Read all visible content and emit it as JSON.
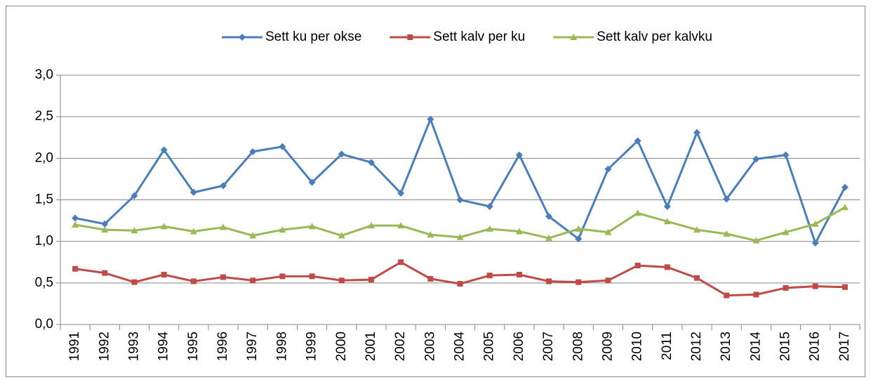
{
  "chart_data": {
    "type": "line",
    "categories": [
      "1991",
      "1992",
      "1993",
      "1994",
      "1995",
      "1996",
      "1997",
      "1998",
      "1999",
      "2000",
      "2001",
      "2002",
      "2003",
      "2004",
      "2005",
      "2006",
      "2007",
      "2008",
      "2009",
      "2010",
      "2011",
      "2012",
      "2013",
      "2014",
      "2015",
      "2016",
      "2017"
    ],
    "series": [
      {
        "name": "Sett ku per okse",
        "color": "#4a7ebb",
        "marker": "diamond",
        "values": [
          1.28,
          1.21,
          1.55,
          2.1,
          1.59,
          1.67,
          2.08,
          2.14,
          1.71,
          2.05,
          1.95,
          1.58,
          2.47,
          1.5,
          1.42,
          2.04,
          1.3,
          1.03,
          1.87,
          2.21,
          1.42,
          2.31,
          1.51,
          1.99,
          2.04,
          0.98,
          1.65
        ]
      },
      {
        "name": "Sett kalv per ku",
        "color": "#be4b48",
        "marker": "square",
        "values": [
          0.67,
          0.62,
          0.51,
          0.6,
          0.52,
          0.57,
          0.53,
          0.58,
          0.58,
          0.53,
          0.54,
          0.75,
          0.55,
          0.49,
          0.59,
          0.6,
          0.52,
          0.51,
          0.53,
          0.71,
          0.69,
          0.56,
          0.35,
          0.36,
          0.44,
          0.46,
          0.45
        ]
      },
      {
        "name": "Sett kalv per kalvku",
        "color": "#98b954",
        "marker": "triangle",
        "values": [
          1.2,
          1.14,
          1.13,
          1.18,
          1.12,
          1.17,
          1.07,
          1.14,
          1.18,
          1.07,
          1.19,
          1.19,
          1.08,
          1.05,
          1.15,
          1.12,
          1.04,
          1.15,
          1.11,
          1.34,
          1.24,
          1.14,
          1.09,
          1.01,
          1.11,
          1.21,
          1.41
        ]
      }
    ],
    "ylim": [
      0,
      3
    ],
    "yticks": [
      {
        "value": 0,
        "label": "0,0"
      },
      {
        "value": 0.5,
        "label": "0,5"
      },
      {
        "value": 1,
        "label": "1,0"
      },
      {
        "value": 1.5,
        "label": "1,5"
      },
      {
        "value": 2,
        "label": "2,0"
      },
      {
        "value": 2.5,
        "label": "2,5"
      },
      {
        "value": 3,
        "label": "3,0"
      }
    ],
    "grid": true,
    "legend": "top"
  }
}
